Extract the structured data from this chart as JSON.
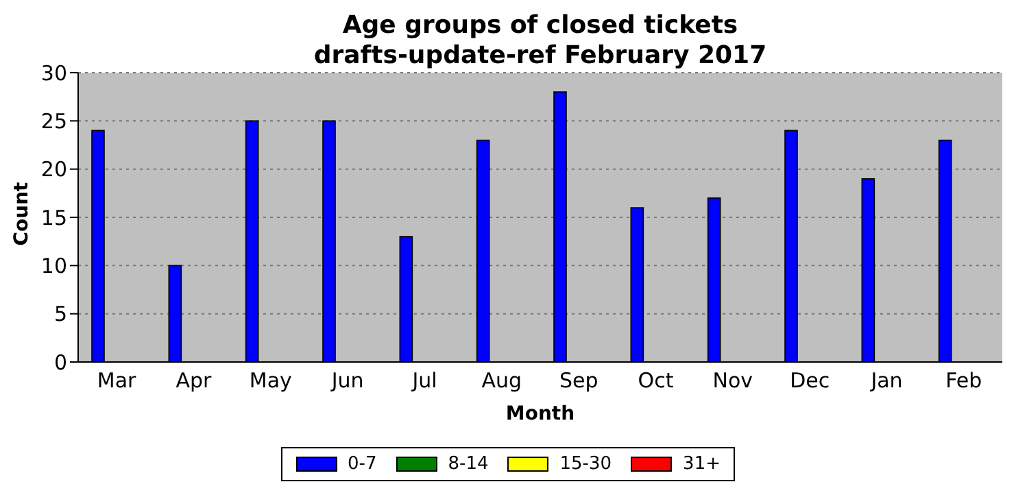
{
  "chart_data": {
    "type": "bar",
    "title": "Age groups of closed tickets",
    "subtitle": "drafts-update-ref February 2017",
    "xlabel": "Month",
    "ylabel": "Count",
    "categories": [
      "Mar",
      "Apr",
      "May",
      "Jun",
      "Jul",
      "Aug",
      "Sep",
      "Oct",
      "Nov",
      "Dec",
      "Jan",
      "Feb"
    ],
    "series": [
      {
        "name": "0-7",
        "color": "#0000ff",
        "values": [
          24,
          10,
          25,
          25,
          13,
          23,
          28,
          16,
          17,
          24,
          19,
          23
        ]
      },
      {
        "name": "8-14",
        "color": "#008000",
        "values": [
          0,
          0,
          0,
          0,
          0,
          0,
          0,
          0,
          0,
          0,
          0,
          0
        ]
      },
      {
        "name": "15-30",
        "color": "#ffff00",
        "values": [
          0,
          0,
          0,
          0,
          0,
          0,
          0,
          0,
          0,
          0,
          0,
          0
        ]
      },
      {
        "name": "31+",
        "color": "#ff0000",
        "values": [
          0,
          0,
          0,
          0,
          0,
          0,
          0,
          0,
          0,
          0,
          0,
          0
        ]
      }
    ],
    "ylim": [
      0,
      30
    ],
    "yticks": [
      0,
      5,
      10,
      15,
      20,
      25,
      30
    ],
    "grid": "y",
    "legend": "bottom"
  }
}
